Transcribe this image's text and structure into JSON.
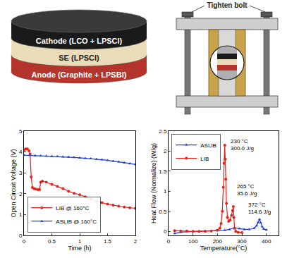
{
  "diagram": {
    "layers": [
      "Cathode (LCO + LPSCl)",
      "SE (LPSCl)",
      "Anode (Graphite + LPSBI)"
    ],
    "press_label": "Tighten bolt"
  },
  "chart_data": [
    {
      "type": "line",
      "xlabel": "Time (h)",
      "ylabel": "Open Circuit Voltage (V)",
      "xlim": [
        0,
        2
      ],
      "xticks": [
        0,
        0.5,
        1,
        1.5,
        2
      ],
      "ylim": [
        0,
        5
      ],
      "yticks": [
        0,
        1,
        2,
        3,
        4,
        5
      ],
      "grid": false,
      "legend": "lower left",
      "series": [
        {
          "name": "LIB @ 160°C",
          "color": "#e8201a",
          "marker": "circle",
          "line_style": "solid",
          "x": [
            0,
            0.03,
            0.06,
            0.09,
            0.11,
            0.13,
            0.15,
            0.18,
            0.21,
            0.25,
            0.28,
            0.3,
            0.33,
            0.4,
            0.5,
            0.6,
            0.7,
            0.8,
            0.9,
            1.0,
            1.1,
            1.2,
            1.3,
            1.4,
            1.5,
            1.6,
            1.7,
            1.8,
            1.9,
            2.0
          ],
          "values": [
            4.1,
            4.15,
            4.15,
            4.05,
            3.9,
            2.8,
            2.3,
            2.25,
            2.22,
            2.2,
            2.2,
            2.55,
            2.6,
            2.55,
            2.45,
            2.35,
            2.25,
            2.12,
            2.02,
            1.95,
            1.85,
            1.75,
            1.65,
            1.57,
            1.5,
            1.45,
            1.4,
            1.36,
            1.33,
            1.3
          ]
        },
        {
          "name": "ASLIB @ 160°C",
          "color": "#1f3fd6",
          "marker": "triangle-up",
          "line_style": "solid",
          "x": [
            0,
            0.1,
            0.2,
            0.3,
            0.4,
            0.5,
            0.6,
            0.7,
            0.8,
            0.9,
            1.0,
            1.1,
            1.2,
            1.3,
            1.4,
            1.5,
            1.6,
            1.7,
            1.8,
            1.9,
            2.0
          ],
          "values": [
            3.85,
            3.84,
            3.83,
            3.82,
            3.81,
            3.79,
            3.78,
            3.77,
            3.76,
            3.74,
            3.72,
            3.7,
            3.68,
            3.66,
            3.63,
            3.6,
            3.56,
            3.53,
            3.49,
            3.45,
            3.4
          ]
        }
      ]
    },
    {
      "type": "line",
      "xlabel": "Temperature(°C)",
      "ylabel": "Heat Flow (Normalize) (W/g)",
      "xlim": [
        0,
        450
      ],
      "xticks": [
        0,
        100,
        200,
        300,
        400
      ],
      "ylim": [
        -0.1,
        2.5
      ],
      "yticks": [
        0,
        0.5,
        1,
        1.5,
        2,
        2.5
      ],
      "grid": false,
      "legend": "upper left",
      "series": [
        {
          "name": "ASLIB",
          "color": "#1f3fd6",
          "marker": "triangle-up",
          "line_style": "solid",
          "x": [
            25,
            50,
            100,
            150,
            200,
            230,
            250,
            270,
            290,
            310,
            330,
            350,
            360,
            366,
            372,
            377,
            383,
            390,
            400
          ],
          "values": [
            -0.05,
            -0.02,
            0,
            0.01,
            0.02,
            0.03,
            0.05,
            0.09,
            0.07,
            0.05,
            0.05,
            0.08,
            0.14,
            0.22,
            0.3,
            0.22,
            0.12,
            0.06,
            0.04
          ]
        },
        {
          "name": "LIB",
          "color": "#e8201a",
          "marker": "circle",
          "line_style": "solid",
          "x": [
            25,
            50,
            75,
            100,
            125,
            150,
            175,
            200,
            210,
            215,
            220,
            224,
            227,
            230,
            232,
            234,
            237,
            241,
            246,
            252,
            258,
            262,
            265,
            267,
            270,
            275,
            285,
            300
          ],
          "values": [
            0.02,
            0.01,
            0.01,
            0,
            0,
            0,
            0.01,
            0.03,
            0.08,
            0.2,
            0.5,
            1.1,
            1.7,
            2.15,
            1.8,
            1.3,
            0.7,
            0.35,
            0.25,
            0.28,
            0.4,
            0.52,
            0.62,
            0.35,
            0.08,
            0,
            -0.02,
            -0.03
          ]
        }
      ],
      "annotations": [
        {
          "x": 230,
          "y": 2.15,
          "lines": [
            "230 °C",
            "300.0 J/g"
          ]
        },
        {
          "x": 265,
          "y": 0.62,
          "lines": [
            "265 °C",
            "35.6 J/g"
          ]
        },
        {
          "x": 372,
          "y": 0.3,
          "lines": [
            "372 °C",
            "114.6 J/g"
          ]
        }
      ]
    }
  ]
}
